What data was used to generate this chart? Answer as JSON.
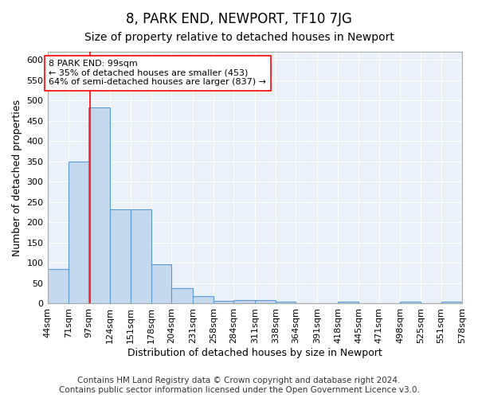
{
  "title": "8, PARK END, NEWPORT, TF10 7JG",
  "subtitle": "Size of property relative to detached houses in Newport",
  "xlabel": "Distribution of detached houses by size in Newport",
  "ylabel": "Number of detached properties",
  "bar_color": "#c5d8ed",
  "bar_edge_color": "#5b9bd5",
  "background_color": "#eaf1f8",
  "grid_color": "#ffffff",
  "red_line_x": 99,
  "annotation_text": "8 PARK END: 99sqm\n← 35% of detached houses are smaller (453)\n64% of semi-detached houses are larger (837) →",
  "bin_edges": [
    44,
    71,
    97,
    124,
    151,
    178,
    204,
    231,
    258,
    284,
    311,
    338,
    364,
    391,
    418,
    445,
    471,
    498,
    525,
    551,
    578
  ],
  "bar_heights": [
    85,
    350,
    483,
    232,
    232,
    97,
    38,
    18,
    7,
    8,
    8,
    5,
    0,
    0,
    5,
    0,
    0,
    5,
    0,
    5
  ],
  "ylim": [
    0,
    620
  ],
  "yticks": [
    0,
    50,
    100,
    150,
    200,
    250,
    300,
    350,
    400,
    450,
    500,
    550,
    600
  ],
  "footnote": "Contains HM Land Registry data © Crown copyright and database right 2024.\nContains public sector information licensed under the Open Government Licence v3.0.",
  "footnote_fontsize": 7.5,
  "title_fontsize": 12,
  "subtitle_fontsize": 10,
  "xlabel_fontsize": 9,
  "ylabel_fontsize": 9
}
